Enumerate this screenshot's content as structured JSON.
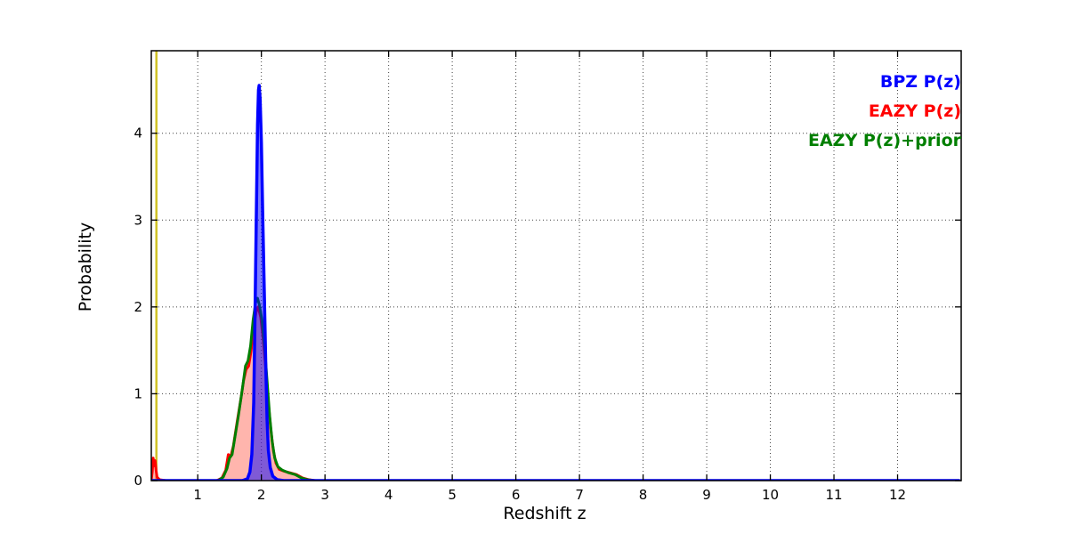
{
  "figure": {
    "background": "#ffffff"
  },
  "chart_data": {
    "type": "line",
    "title": "",
    "xlabel": "Redshift z",
    "ylabel": "Probability",
    "xlim": [
      0.27,
      13.0
    ],
    "ylim": [
      0,
      4.95
    ],
    "xticks": [
      1,
      2,
      3,
      4,
      5,
      6,
      7,
      8,
      9,
      10,
      11,
      12
    ],
    "yticks": [
      0,
      1,
      2,
      3,
      4
    ],
    "grid": "dotted",
    "grid_color": "#444444",
    "spine_color": "#000000",
    "vline": {
      "x": 0.35,
      "color": "#cfc226",
      "width": 2.5,
      "name": "reference-redshift-line"
    },
    "legend": {
      "position": "upper right",
      "entries": [
        {
          "label": "BPZ P(z)",
          "color": "#0000ff"
        },
        {
          "label": "EAZY P(z)",
          "color": "#ff0000"
        },
        {
          "label": "EAZY P(z)+prior",
          "color": "#007f00"
        }
      ]
    },
    "series": [
      {
        "name": "EAZY P(z)",
        "color": "#ff0000",
        "fill": "rgba(255,60,40,0.38)",
        "linewidth": 3,
        "zorder": 1,
        "points": [
          [
            0.27,
            0.01
          ],
          [
            0.285,
            0.1
          ],
          [
            0.3,
            0.26
          ],
          [
            0.315,
            0.17
          ],
          [
            0.33,
            0.23
          ],
          [
            0.345,
            0.12
          ],
          [
            0.36,
            0.04
          ],
          [
            0.4,
            0.01
          ],
          [
            0.5,
            0.0
          ],
          [
            1.3,
            0.0
          ],
          [
            1.38,
            0.03
          ],
          [
            1.44,
            0.12
          ],
          [
            1.48,
            0.3
          ],
          [
            1.52,
            0.28
          ],
          [
            1.56,
            0.4
          ],
          [
            1.62,
            0.68
          ],
          [
            1.68,
            0.95
          ],
          [
            1.72,
            1.15
          ],
          [
            1.76,
            1.28
          ],
          [
            1.8,
            1.32
          ],
          [
            1.84,
            1.5
          ],
          [
            1.88,
            1.78
          ],
          [
            1.92,
            1.95
          ],
          [
            1.95,
            2.0
          ],
          [
            1.99,
            1.88
          ],
          [
            2.03,
            1.62
          ],
          [
            2.07,
            1.28
          ],
          [
            2.11,
            0.9
          ],
          [
            2.15,
            0.58
          ],
          [
            2.19,
            0.34
          ],
          [
            2.23,
            0.2
          ],
          [
            2.28,
            0.13
          ],
          [
            2.35,
            0.11
          ],
          [
            2.45,
            0.09
          ],
          [
            2.55,
            0.07
          ],
          [
            2.65,
            0.03
          ],
          [
            2.75,
            0.01
          ],
          [
            2.85,
            0.0
          ],
          [
            12.98,
            0.0
          ]
        ]
      },
      {
        "name": "EAZY P(z)+prior",
        "color": "#007f00",
        "fill": "none",
        "linewidth": 3,
        "zorder": 2,
        "points": [
          [
            0.27,
            0.0
          ],
          [
            1.32,
            0.0
          ],
          [
            1.4,
            0.04
          ],
          [
            1.46,
            0.14
          ],
          [
            1.5,
            0.26
          ],
          [
            1.54,
            0.3
          ],
          [
            1.58,
            0.48
          ],
          [
            1.64,
            0.75
          ],
          [
            1.7,
            1.05
          ],
          [
            1.75,
            1.32
          ],
          [
            1.79,
            1.38
          ],
          [
            1.83,
            1.55
          ],
          [
            1.87,
            1.85
          ],
          [
            1.91,
            2.05
          ],
          [
            1.94,
            2.1
          ],
          [
            1.97,
            2.02
          ],
          [
            2.01,
            1.85
          ],
          [
            2.05,
            1.55
          ],
          [
            2.09,
            1.15
          ],
          [
            2.13,
            0.75
          ],
          [
            2.17,
            0.45
          ],
          [
            2.21,
            0.26
          ],
          [
            2.26,
            0.16
          ],
          [
            2.33,
            0.12
          ],
          [
            2.43,
            0.09
          ],
          [
            2.53,
            0.07
          ],
          [
            2.63,
            0.03
          ],
          [
            2.73,
            0.01
          ],
          [
            2.83,
            0.0
          ],
          [
            12.98,
            0.0
          ]
        ]
      },
      {
        "name": "BPZ P(z)",
        "color": "#0000ff",
        "fill": "rgba(0,0,255,0.50)",
        "linewidth": 3.5,
        "zorder": 3,
        "points": [
          [
            0.27,
            0.0
          ],
          [
            1.7,
            0.0
          ],
          [
            1.78,
            0.02
          ],
          [
            1.82,
            0.1
          ],
          [
            1.85,
            0.3
          ],
          [
            1.88,
            0.9
          ],
          [
            1.9,
            1.9
          ],
          [
            1.92,
            3.0
          ],
          [
            1.94,
            4.1
          ],
          [
            1.955,
            4.5
          ],
          [
            1.965,
            4.55
          ],
          [
            1.98,
            4.4
          ],
          [
            2.0,
            3.9
          ],
          [
            2.02,
            3.1
          ],
          [
            2.045,
            2.2
          ],
          [
            2.07,
            1.3
          ],
          [
            2.09,
            0.7
          ],
          [
            2.11,
            0.35
          ],
          [
            2.14,
            0.15
          ],
          [
            2.18,
            0.05
          ],
          [
            2.25,
            0.01
          ],
          [
            2.35,
            0.0
          ],
          [
            12.98,
            0.0
          ]
        ]
      }
    ]
  }
}
